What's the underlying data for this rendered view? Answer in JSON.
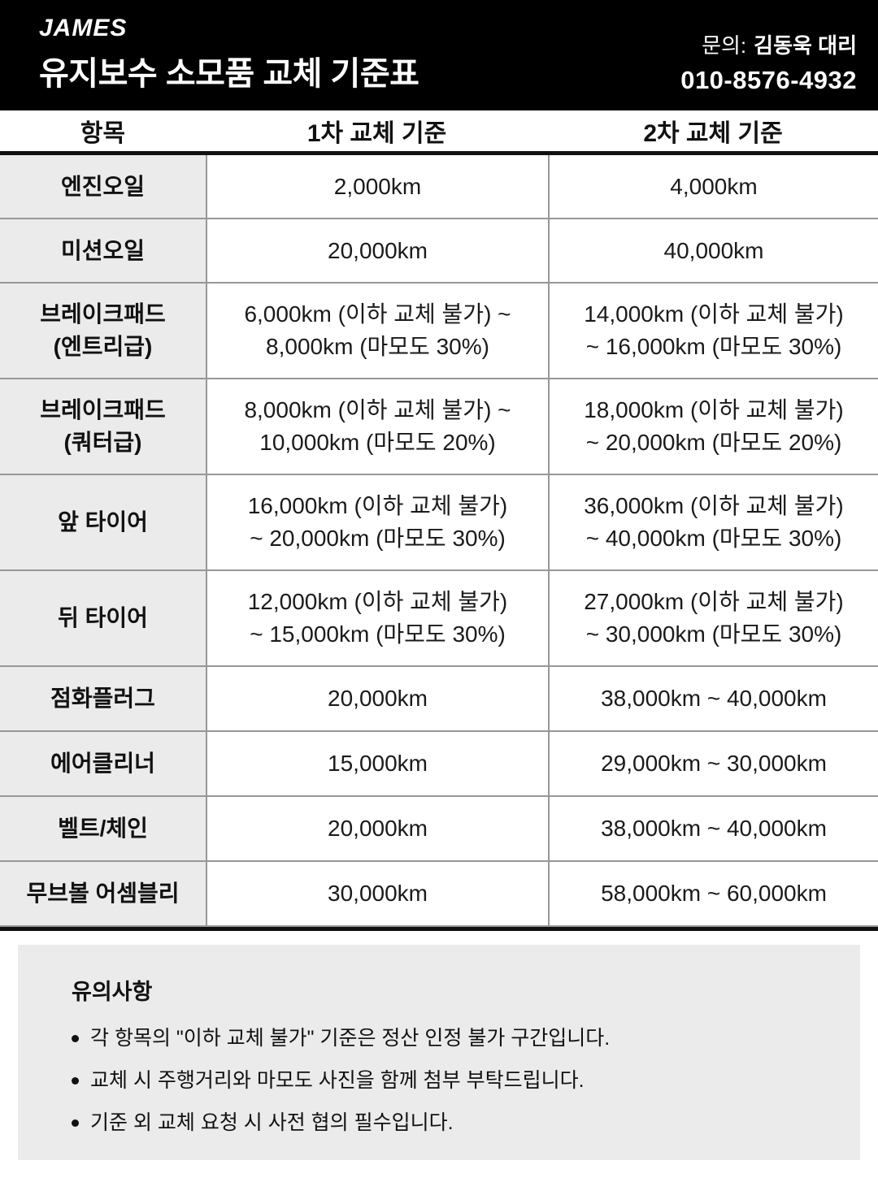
{
  "header": {
    "logo": "JAMES",
    "title": "유지보수 소모품 교체 기준표",
    "contact_label": "문의:",
    "contact_name": "김동욱 대리",
    "phone": "010-8576-4932"
  },
  "table": {
    "headers": [
      "항목",
      "1차 교체 기준",
      "2차 교체 기준"
    ],
    "rows": [
      {
        "item": [
          "엔진오일"
        ],
        "first": [
          "2,000km"
        ],
        "second": [
          "4,000km"
        ]
      },
      {
        "item": [
          "미션오일"
        ],
        "first": [
          "20,000km"
        ],
        "second": [
          "40,000km"
        ]
      },
      {
        "item": [
          "브레이크패드",
          "(엔트리급)"
        ],
        "first": [
          "6,000km (이하 교체 불가) ~",
          "8,000km (마모도 30%)"
        ],
        "second": [
          "14,000km (이하 교체 불가)",
          "~ 16,000km (마모도 30%)"
        ]
      },
      {
        "item": [
          "브레이크패드",
          "(쿼터급)"
        ],
        "first": [
          "8,000km (이하 교체 불가) ~",
          "10,000km (마모도 20%)"
        ],
        "second": [
          "18,000km (이하 교체 불가)",
          "~ 20,000km (마모도 20%)"
        ]
      },
      {
        "item": [
          "앞 타이어"
        ],
        "first": [
          "16,000km (이하 교체 불가)",
          "~ 20,000km (마모도 30%)"
        ],
        "second": [
          "36,000km (이하 교체 불가)",
          "~ 40,000km (마모도 30%)"
        ]
      },
      {
        "item": [
          "뒤 타이어"
        ],
        "first": [
          "12,000km (이하 교체 불가)",
          "~ 15,000km (마모도 30%)"
        ],
        "second": [
          "27,000km (이하 교체 불가)",
          "~ 30,000km (마모도 30%)"
        ]
      },
      {
        "item": [
          "점화플러그"
        ],
        "first": [
          "20,000km"
        ],
        "second": [
          "38,000km ~ 40,000km"
        ]
      },
      {
        "item": [
          "에어클리너"
        ],
        "first": [
          "15,000km"
        ],
        "second": [
          "29,000km ~ 30,000km"
        ]
      },
      {
        "item": [
          "벨트/체인"
        ],
        "first": [
          "20,000km"
        ],
        "second": [
          "38,000km ~ 40,000km"
        ]
      },
      {
        "item": [
          "무브볼 어셈블리"
        ],
        "first": [
          "30,000km"
        ],
        "second": [
          "58,000km ~ 60,000km"
        ]
      }
    ]
  },
  "notes": {
    "title": "유의사항",
    "items": [
      "각 항목의 \"이하 교체 불가\" 기준은 정산 인정 불가 구간입니다.",
      "교체 시 주행거리와 마모도 사진을 함께 첨부 부탁드립니다.",
      "기준 외 교체 요청 시 사전 협의 필수입니다."
    ]
  },
  "colors": {
    "banner_bg": "#000000",
    "banner_text": "#ffffff",
    "label_column_bg": "#ebebeb",
    "notes_bg": "#ebebeb",
    "grid_border": "#979797",
    "heavy_border": "#111111"
  }
}
